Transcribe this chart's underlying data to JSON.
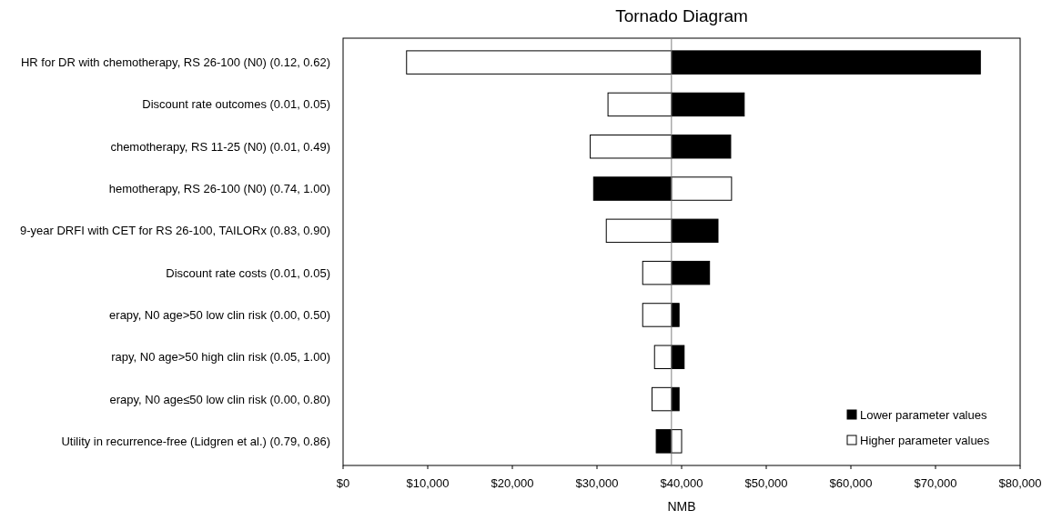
{
  "chart_data": {
    "type": "bar",
    "orientation": "horizontal",
    "title": "Tornado Diagram",
    "xlabel": "NMB",
    "categories": [
      "HR for DR with chemotherapy, RS 26-100 (N0) (0.12, 0.62)",
      "Discount rate outcomes (0.01, 0.05)",
      "chemotherapy, RS 11-25 (N0) (0.01, 0.49)",
      "hemotherapy, RS 26-100 (N0) (0.74, 1.00)",
      "9-year DRFI with CET for RS 26-100, TAILORx (0.83, 0.90)",
      "Discount rate costs (0.01, 0.05)",
      "erapy, N0 age>50 low clin risk (0.00, 0.50)",
      "rapy, N0 age>50 high clin risk (0.05, 1.00)",
      "erapy, N0 age≤50 low clin risk (0.00, 0.80)",
      "Utility in recurrence-free (Lidgren et al.) (0.79, 0.86)"
    ],
    "series": [
      {
        "name": "Lower parameter values",
        "color": "#000000",
        "base": [
          38800,
          38800,
          38800,
          29600,
          38800,
          38800,
          38800,
          38800,
          38800,
          37000
        ],
        "values": [
          36500,
          8600,
          7000,
          9200,
          5500,
          4500,
          900,
          1500,
          900,
          1800
        ]
      },
      {
        "name": "Higher parameter values",
        "color": "#ffffff",
        "base": [
          7500,
          31300,
          29200,
          38800,
          31100,
          35400,
          35400,
          36800,
          36500,
          38800
        ],
        "values": [
          31300,
          7500,
          9600,
          7100,
          7700,
          3400,
          3400,
          2000,
          2300,
          1200
        ]
      }
    ],
    "xlim": [
      0,
      80000
    ],
    "xticks": [
      {
        "value": 0,
        "label": "$0"
      },
      {
        "value": 10000,
        "label": "$10,000"
      },
      {
        "value": 20000,
        "label": "$20,000"
      },
      {
        "value": 30000,
        "label": "$30,000"
      },
      {
        "value": 40000,
        "label": "$40,000"
      },
      {
        "value": 50000,
        "label": "$50,000"
      },
      {
        "value": 60000,
        "label": "$60,000"
      },
      {
        "value": 70000,
        "label": "$70,000"
      },
      {
        "value": 80000,
        "label": "$80,000"
      }
    ],
    "ref_lines": [
      {
        "axis": "x",
        "value": 38800,
        "color": "#808080"
      }
    ],
    "legend": "bottom right"
  }
}
